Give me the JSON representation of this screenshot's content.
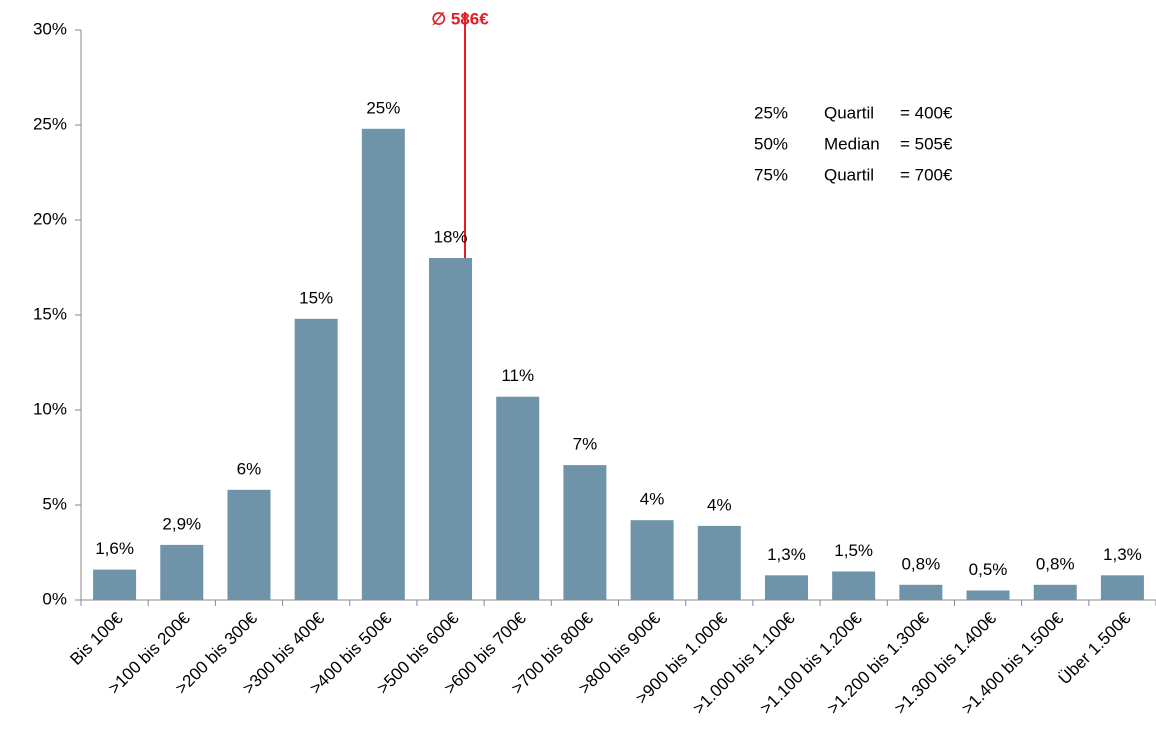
{
  "chart_data": {
    "type": "bar",
    "categories": [
      "Bis 100€",
      ">100 bis 200€",
      ">200 bis 300€",
      ">300 bis 400€",
      ">400 bis 500€",
      ">500 bis 600€",
      ">600 bis 700€",
      ">700 bis 800€",
      ">800 bis 900€",
      ">900 bis 1.000€",
      ">1.000 bis 1.100€",
      ">1.100 bis 1.200€",
      ">1.200 bis 1.300€",
      ">1.300 bis 1.400€",
      ">1.400 bis 1.500€",
      "Über 1.500€"
    ],
    "values": [
      1.6,
      2.9,
      5.8,
      14.8,
      24.8,
      18.0,
      10.7,
      7.1,
      4.2,
      3.9,
      1.3,
      1.5,
      0.8,
      0.5,
      0.8,
      1.3
    ],
    "value_labels": [
      "1,6%",
      "2,9%",
      "6%",
      "15%",
      "25%",
      "18%",
      "11%",
      "7%",
      "4%",
      "4%",
      "1,3%",
      "1,5%",
      "0,8%",
      "0,5%",
      "0,8%",
      "1,3%"
    ],
    "color": "#6f93a8",
    "ylim": [
      0,
      30
    ],
    "yticks": [
      {
        "value": 0,
        "label": "0%"
      },
      {
        "value": 5,
        "label": "5%"
      },
      {
        "value": 10,
        "label": "10%"
      },
      {
        "value": 15,
        "label": "15%"
      },
      {
        "value": 20,
        "label": "20%"
      },
      {
        "value": 25,
        "label": "25%"
      },
      {
        "value": 30,
        "label": "30%"
      }
    ],
    "mean_annotation": "∅ 586€",
    "mean_color": "#e31e24",
    "stats": [
      [
        "25%",
        "Quartil",
        "= 400€"
      ],
      [
        "50%",
        "Median",
        "= 505€"
      ],
      [
        "75%",
        "Quartil",
        "= 700€"
      ]
    ]
  }
}
